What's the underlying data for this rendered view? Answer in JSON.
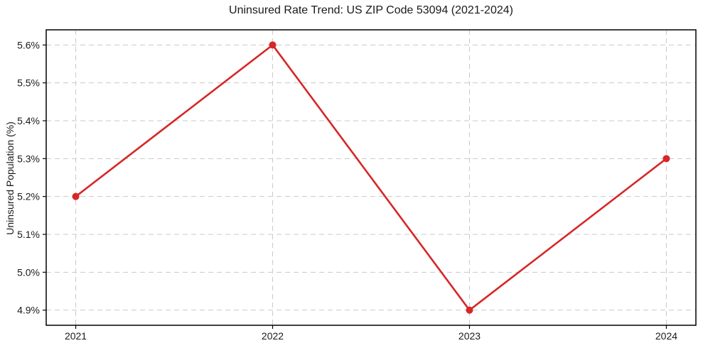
{
  "chart_data": {
    "type": "line",
    "title": "Uninsured Rate Trend: US ZIP Code 53094 (2021-2024)",
    "xlabel": "",
    "ylabel": "Uninsured Population (%)",
    "x": [
      2021,
      2022,
      2023,
      2024
    ],
    "values": [
      5.2,
      5.6,
      4.9,
      5.3
    ],
    "x_tick_labels": [
      "2021",
      "2022",
      "2023",
      "2024"
    ],
    "y_ticks": [
      4.9,
      5.0,
      5.1,
      5.2,
      5.3,
      5.4,
      5.5,
      5.6
    ],
    "y_tick_labels": [
      "4.9%",
      "5.0%",
      "5.1%",
      "5.2%",
      "5.3%",
      "5.4%",
      "5.5%",
      "5.6%"
    ],
    "xlim": [
      2020.85,
      2024.15
    ],
    "ylim": [
      4.86,
      5.64
    ],
    "grid": true,
    "grid_style": "dashed",
    "legend": false,
    "colors": {
      "line": "#d62728",
      "marker": "#d62728",
      "grid": "#c9c9c9",
      "axis": "#000000",
      "text": "#1a1a1a",
      "background": "#ffffff"
    }
  }
}
